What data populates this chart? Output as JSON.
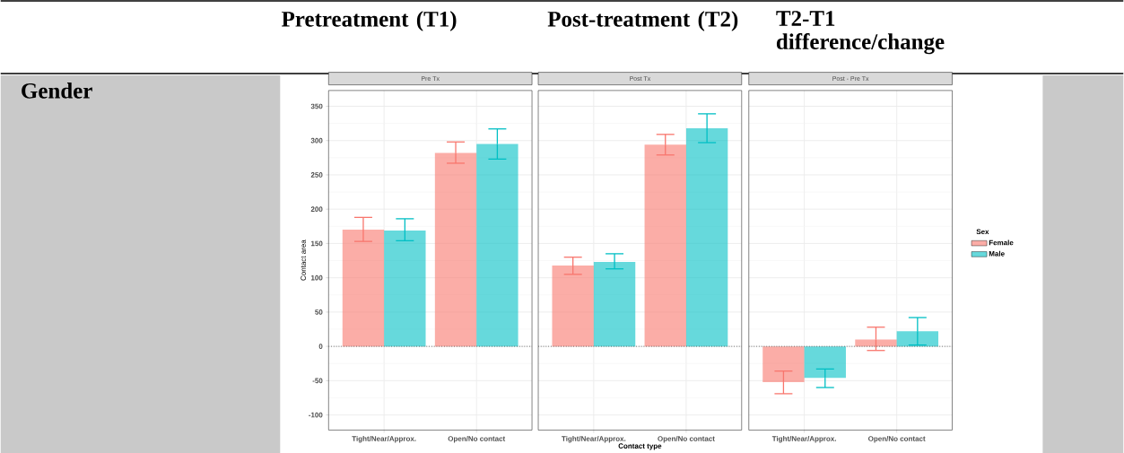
{
  "chart_data": [
    {
      "type": "bar",
      "title": "Pre Tx",
      "ylabel": "Contact area",
      "annotations": [
        "Pretreatment (T1)",
        "Gender"
      ],
      "categories": [
        "Tight/Near/Approx.",
        "Open/No contact"
      ],
      "series": [
        {
          "color": "#f8766d",
          "values": [
            170,
            282
          ],
          "errors": [
            [
              153,
              188
            ],
            [
              267,
              298
            ]
          ]
        },
        {
          "color": "#00bfc4",
          "values": [
            169,
            295
          ],
          "errors": [
            [
              154,
              186
            ],
            [
              273,
              317
            ]
          ]
        }
      ],
      "ylim": [
        -122,
        373
      ],
      "yticks": [
        -100,
        -50,
        0,
        50,
        100,
        150,
        200,
        250,
        300,
        350
      ],
      "grid": true,
      "ref_lines": [
        {
          "axis": "y",
          "value": 0,
          "line_style": "dotted"
        }
      ]
    },
    {
      "type": "bar",
      "title": "Post Tx",
      "xlabel": "Contact type",
      "annotations": [
        "Post-treatment (T2)"
      ],
      "categories": [
        "Tight/Near/Approx.",
        "Open/No contact"
      ],
      "series": [
        {
          "color": "#f8766d",
          "values": [
            118,
            294
          ],
          "errors": [
            [
              105,
              130
            ],
            [
              279,
              309
            ]
          ]
        },
        {
          "color": "#00bfc4",
          "values": [
            123,
            318
          ],
          "errors": [
            [
              113,
              135
            ],
            [
              297,
              339
            ]
          ]
        }
      ],
      "ylim": [
        -122,
        373
      ],
      "yticks": [
        -100,
        -50,
        0,
        50,
        100,
        150,
        200,
        250,
        300,
        350
      ],
      "grid": true,
      "tick_labels": "x",
      "ref_lines": [
        {
          "axis": "y",
          "value": 0,
          "line_style": "dotted"
        }
      ]
    },
    {
      "type": "bar",
      "title": "Post - Pre Tx",
      "annotations": [
        "T2-T1 difference/change"
      ],
      "legend_title": "Sex",
      "legend": "right",
      "categories": [
        "Tight/Near/Approx.",
        "Open/No contact"
      ],
      "series": [
        {
          "name": "Female",
          "color": "#f8766d",
          "values": [
            -52,
            10
          ],
          "errors": [
            [
              -69,
              -36
            ],
            [
              -6,
              28
            ]
          ]
        },
        {
          "name": "Male",
          "color": "#00bfc4",
          "values": [
            -46,
            22
          ],
          "errors": [
            [
              -60,
              -33
            ],
            [
              2,
              42
            ]
          ]
        }
      ],
      "ylim": [
        -122,
        373
      ],
      "yticks": [
        -100,
        -50,
        0,
        50,
        100,
        150,
        200,
        250,
        300,
        350
      ],
      "grid": true,
      "tick_labels": "x",
      "ref_lines": [
        {
          "axis": "y",
          "value": 0,
          "line_style": "dotted"
        }
      ]
    }
  ]
}
